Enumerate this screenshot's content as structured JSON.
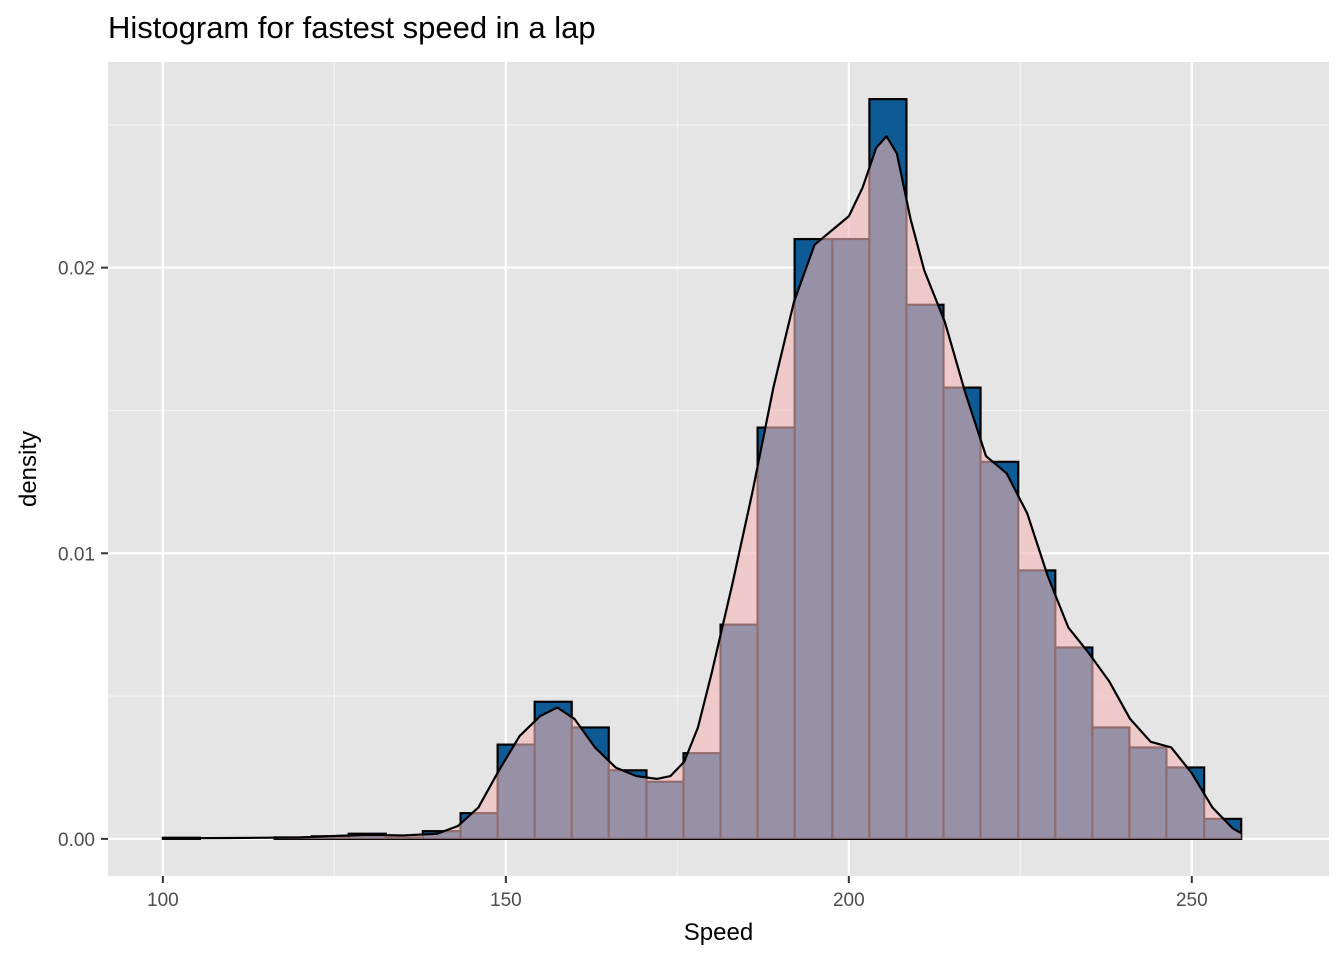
{
  "chart_data": {
    "type": "histogram",
    "title": "Histogram for fastest speed in a lap",
    "xlabel": "Speed",
    "ylabel": "density",
    "xlim": [
      92,
      270
    ],
    "ylim": [
      -0.0013,
      0.0272
    ],
    "x_ticks": [
      100,
      150,
      200,
      250
    ],
    "x_tick_labels": [
      "100",
      "150",
      "200",
      "250"
    ],
    "y_ticks": [
      0.0,
      0.01,
      0.02
    ],
    "y_tick_labels": [
      "0.00",
      "0.01",
      "0.02"
    ],
    "grid": true,
    "bin_width": 5.42,
    "bins": [
      {
        "x0": 100.0,
        "x1": 105.4,
        "density": 4e-05
      },
      {
        "x0": 105.4,
        "x1": 110.8,
        "density": 0.0
      },
      {
        "x0": 110.8,
        "x1": 116.3,
        "density": 0.0
      },
      {
        "x0": 116.3,
        "x1": 121.7,
        "density": 5e-05
      },
      {
        "x0": 121.7,
        "x1": 127.1,
        "density": 9e-05
      },
      {
        "x0": 127.1,
        "x1": 132.5,
        "density": 0.00018
      },
      {
        "x0": 132.5,
        "x1": 137.9,
        "density": 5e-05
      },
      {
        "x0": 137.9,
        "x1": 143.4,
        "density": 0.00027
      },
      {
        "x0": 143.4,
        "x1": 148.8,
        "density": 0.0009
      },
      {
        "x0": 148.8,
        "x1": 154.2,
        "density": 0.0033
      },
      {
        "x0": 154.2,
        "x1": 159.6,
        "density": 0.0048
      },
      {
        "x0": 159.6,
        "x1": 165.0,
        "density": 0.0039
      },
      {
        "x0": 165.0,
        "x1": 170.5,
        "density": 0.0024
      },
      {
        "x0": 170.5,
        "x1": 175.9,
        "density": 0.002
      },
      {
        "x0": 175.9,
        "x1": 181.3,
        "density": 0.003
      },
      {
        "x0": 181.3,
        "x1": 186.7,
        "density": 0.0075
      },
      {
        "x0": 186.7,
        "x1": 192.1,
        "density": 0.0144
      },
      {
        "x0": 192.1,
        "x1": 197.6,
        "density": 0.021
      },
      {
        "x0": 197.6,
        "x1": 203.0,
        "density": 0.021
      },
      {
        "x0": 203.0,
        "x1": 208.4,
        "density": 0.0259
      },
      {
        "x0": 208.4,
        "x1": 213.8,
        "density": 0.0187
      },
      {
        "x0": 213.8,
        "x1": 219.2,
        "density": 0.0158
      },
      {
        "x0": 219.2,
        "x1": 224.7,
        "density": 0.0132
      },
      {
        "x0": 224.7,
        "x1": 230.1,
        "density": 0.0094
      },
      {
        "x0": 230.1,
        "x1": 235.5,
        "density": 0.0067
      },
      {
        "x0": 235.5,
        "x1": 240.9,
        "density": 0.0039
      },
      {
        "x0": 240.9,
        "x1": 246.3,
        "density": 0.0032
      },
      {
        "x0": 246.3,
        "x1": 251.8,
        "density": 0.0025
      },
      {
        "x0": 251.8,
        "x1": 257.2,
        "density": 0.0007
      },
      {
        "x0": 257.2,
        "x1": 262.3,
        "density": 0.0
      }
    ],
    "density_curve": {
      "x": [
        100,
        110,
        120,
        125,
        130,
        135,
        140,
        143,
        146,
        149,
        152,
        155,
        157.5,
        160,
        163,
        166,
        169,
        172,
        174,
        176,
        178,
        180,
        183,
        186,
        189,
        192,
        195,
        197.5,
        200,
        202,
        204,
        205.5,
        207,
        209,
        211,
        214,
        217,
        220,
        223,
        226,
        229,
        232,
        235,
        238,
        241,
        244,
        247,
        250,
        253,
        256,
        257.2
      ],
      "y": [
        2e-05,
        3e-05,
        5e-05,
        0.0001,
        0.00014,
        0.00012,
        0.00018,
        0.00045,
        0.0011,
        0.0024,
        0.0036,
        0.0043,
        0.0046,
        0.0042,
        0.0032,
        0.0025,
        0.0022,
        0.0021,
        0.0022,
        0.0027,
        0.0039,
        0.0058,
        0.0089,
        0.0122,
        0.0158,
        0.0188,
        0.0208,
        0.0213,
        0.0218,
        0.0228,
        0.0242,
        0.0246,
        0.024,
        0.0217,
        0.0199,
        0.0181,
        0.0156,
        0.0134,
        0.0128,
        0.0114,
        0.0092,
        0.0074,
        0.0065,
        0.0055,
        0.0042,
        0.0034,
        0.0032,
        0.0023,
        0.0011,
        0.00036,
        0.0002
      ]
    },
    "colors": {
      "panel_background": "#e5e5e5",
      "grid_major": "#ffffff",
      "grid_minor": "#f2f2f2",
      "bar_fill": "#0d5a94",
      "bar_stroke": "#000000",
      "density_fill": "#f4b6b6",
      "density_fill_opacity": 0.6,
      "curve": "#000000",
      "axis_text": "#4d4d4d",
      "label_text": "#000000"
    }
  }
}
